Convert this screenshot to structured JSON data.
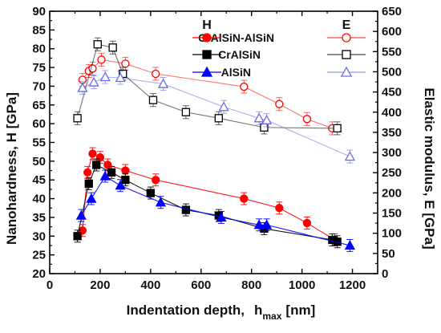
{
  "chart_data": {
    "type": "scatter",
    "xlabel": "Indentation depth,",
    "xlabel_symbol": "h",
    "xlabel_subscript": "max",
    "xlabel_unit": "[nm]",
    "ylabel_left": "Nanohardness, H  [GPa]",
    "ylabel_right": "Elastic modulus,  E  [GPa]",
    "xlim": [
      0,
      1300
    ],
    "ylim_left": [
      20,
      90
    ],
    "ylim_right": [
      0,
      650
    ],
    "x_ticks": [
      "0",
      "200",
      "400",
      "600",
      "800",
      "1000",
      "1200"
    ],
    "y_left_ticks": [
      "20",
      "25",
      "30",
      "35",
      "40",
      "45",
      "50",
      "55",
      "60",
      "65",
      "70",
      "75",
      "80",
      "85",
      "90"
    ],
    "y_right_ticks": [
      "0",
      "50",
      "100",
      "150",
      "200",
      "250",
      "300",
      "350",
      "400",
      "450",
      "500",
      "550",
      "600",
      "650"
    ],
    "legend": {
      "h_header": "H",
      "e_header": "E",
      "placement": "top-center"
    },
    "series": [
      {
        "name": "CrAlSiN-AlSiN",
        "axis": "left",
        "group": "H",
        "marker": "circle",
        "filled": true,
        "color": "#ff0000",
        "points": [
          [
            130,
            31.5
          ],
          [
            150,
            47
          ],
          [
            170,
            52
          ],
          [
            200,
            51
          ],
          [
            230,
            49
          ],
          [
            300,
            47.5
          ],
          [
            420,
            45
          ],
          [
            770,
            40
          ],
          [
            910,
            37.5
          ],
          [
            1020,
            33.5
          ],
          [
            1130,
            29
          ]
        ]
      },
      {
        "name": "CrAlSiN",
        "axis": "left",
        "group": "H",
        "marker": "square",
        "filled": true,
        "color": "#000000",
        "points": [
          [
            110,
            30
          ],
          [
            155,
            44
          ],
          [
            185,
            49
          ],
          [
            245,
            47
          ],
          [
            300,
            45
          ],
          [
            400,
            41.5
          ],
          [
            540,
            37
          ],
          [
            670,
            35.5
          ],
          [
            850,
            32
          ],
          [
            1120,
            29
          ],
          [
            1140,
            28.5
          ]
        ]
      },
      {
        "name": "AlSiN",
        "axis": "left",
        "group": "H",
        "marker": "triangle",
        "filled": true,
        "color": "#0000ff",
        "points": [
          [
            125,
            35.5
          ],
          [
            165,
            40
          ],
          [
            220,
            46
          ],
          [
            280,
            43.5
          ],
          [
            440,
            39
          ],
          [
            680,
            35
          ],
          [
            830,
            33
          ],
          [
            860,
            33
          ],
          [
            1190,
            27.5
          ]
        ]
      },
      {
        "name": "CrAlSiN-AlSiN",
        "axis": "right",
        "group": "E",
        "marker": "circle",
        "filled": false,
        "color": "#ff0000",
        "points": [
          [
            130,
            480
          ],
          [
            155,
            502
          ],
          [
            170,
            508
          ],
          [
            205,
            530
          ],
          [
            300,
            520
          ],
          [
            420,
            495
          ],
          [
            770,
            463
          ],
          [
            910,
            420
          ],
          [
            1020,
            383
          ],
          [
            1120,
            360
          ]
        ]
      },
      {
        "name": "CrAlSiN",
        "axis": "right",
        "group": "E",
        "marker": "square",
        "filled": false,
        "color": "#000000",
        "points": [
          [
            110,
            385
          ],
          [
            190,
            568
          ],
          [
            250,
            560
          ],
          [
            290,
            495
          ],
          [
            410,
            430
          ],
          [
            540,
            400
          ],
          [
            670,
            385
          ],
          [
            850,
            362
          ],
          [
            1140,
            360
          ]
        ]
      },
      {
        "name": "AlSiN",
        "axis": "right",
        "group": "E",
        "marker": "triangle",
        "filled": false,
        "color": "#6a6ae6",
        "points": [
          [
            130,
            460
          ],
          [
            175,
            474
          ],
          [
            220,
            487
          ],
          [
            280,
            485
          ],
          [
            450,
            470
          ],
          [
            690,
            413
          ],
          [
            830,
            385
          ],
          [
            860,
            380
          ],
          [
            1190,
            290
          ]
        ]
      }
    ]
  }
}
